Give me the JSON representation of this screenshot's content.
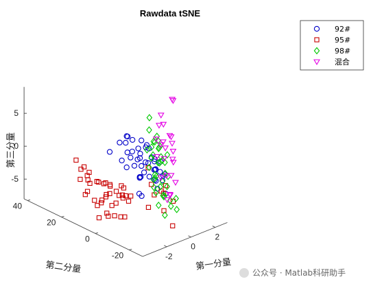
{
  "chart_data": {
    "type": "scatter",
    "projection": "3d",
    "title": "Rawdata tSNE",
    "xlabel": "第一分量",
    "ylabel": "第二分量",
    "zlabel": "第三分量",
    "xlim": [
      -4,
      3
    ],
    "ylim": [
      -28,
      42
    ],
    "zlim": [
      -8,
      9
    ],
    "x_ticks": [
      "-2",
      "0",
      "2"
    ],
    "x_tick_values": [
      -2,
      0,
      2
    ],
    "y_ticks": [
      "-20",
      "0",
      "20",
      "40"
    ],
    "y_tick_values": [
      -20,
      0,
      20,
      40
    ],
    "z_ticks": [
      "-5",
      "0",
      "5"
    ],
    "z_tick_values": [
      -5,
      0,
      5
    ],
    "grid": false,
    "legend_position": "top-right",
    "series": [
      {
        "name": "92#",
        "marker": "circle",
        "color": "#0000c8",
        "points": [
          [
            -2.4,
            -3,
            5.0
          ],
          [
            -2.1,
            -5,
            6.0
          ],
          [
            -1.9,
            -3,
            4.6
          ],
          [
            -1.6,
            -2,
            5.2
          ],
          [
            -2.8,
            0,
            3.5
          ],
          [
            -2.2,
            -8,
            3.2
          ],
          [
            -1.5,
            -4,
            3.1
          ],
          [
            -1.2,
            -2,
            4.4
          ],
          [
            -2.6,
            -9,
            4.4
          ],
          [
            -1.7,
            -10,
            3.0
          ],
          [
            -1.0,
            -4,
            3.2
          ],
          [
            -2.3,
            -11,
            2.4
          ],
          [
            -1.4,
            -8,
            3.2
          ],
          [
            -0.6,
            -3,
            4.0
          ],
          [
            -0.8,
            -7,
            3.6
          ],
          [
            -2.0,
            -13,
            2.4
          ],
          [
            -1.3,
            -12,
            2.2
          ],
          [
            -0.4,
            -6,
            3.0
          ],
          [
            -2.7,
            -17,
            1.6
          ],
          [
            -0.6,
            -9,
            2.2
          ],
          [
            -1.9,
            -17,
            1.2
          ],
          [
            -1.0,
            -14,
            1.2
          ],
          [
            -0.2,
            -8,
            1.5
          ],
          [
            -1.5,
            -18,
            0.4
          ],
          [
            -2.6,
            -16,
            -1.0
          ],
          [
            -2.4,
            -16,
            -1.5
          ],
          [
            -0.6,
            -14,
            0.6
          ],
          [
            -1.1,
            -15,
            1.5
          ],
          [
            0.0,
            -10,
            1.2
          ],
          [
            -1.8,
            -21,
            -0.2
          ],
          [
            -1.1,
            -19,
            0.3
          ],
          [
            -0.5,
            -16,
            0.4
          ],
          [
            -1.4,
            -23,
            -1.0
          ],
          [
            -2.8,
            -10,
            2.4
          ],
          [
            -1.2,
            -5,
            1.8
          ],
          [
            -1.6,
            -18,
            0.6
          ],
          [
            -0.8,
            -12,
            0.8
          ],
          [
            -2.2,
            -14,
            1.0
          ],
          [
            -0.3,
            -4,
            3.2
          ],
          [
            -1.1,
            -9,
            1.8
          ],
          [
            -0.5,
            -10,
            1.6
          ],
          [
            -2.0,
            -12,
            0.6
          ],
          [
            -1.5,
            -11,
            0.8
          ],
          [
            -2.5,
            -5,
            2.6
          ],
          [
            -0.2,
            -13,
            -0.4
          ]
        ]
      },
      {
        "name": "95#",
        "marker": "square",
        "color": "#c80000",
        "points": [
          [
            -0.8,
            -12,
            -3.0
          ],
          [
            -0.5,
            -14,
            -2.4
          ],
          [
            0.2,
            -16,
            -4.2
          ],
          [
            -0.2,
            -6,
            -2.6
          ],
          [
            0.1,
            -2,
            -0.8
          ],
          [
            0.7,
            -8,
            -3.2
          ],
          [
            0.0,
            -12,
            -6.0
          ],
          [
            0.4,
            -9,
            -4.0
          ],
          [
            -1.0,
            -10,
            -5.0
          ],
          [
            -0.4,
            -20,
            -7.0
          ],
          [
            -2.4,
            0,
            -6.5
          ],
          [
            -2.1,
            10,
            -6.0
          ],
          [
            -1.8,
            8,
            -8.0
          ],
          [
            -1.2,
            16,
            -7.0
          ],
          [
            -0.6,
            18,
            -7.2
          ],
          [
            -0.2,
            22,
            -6.0
          ],
          [
            -0.4,
            6,
            -6.5
          ],
          [
            0.2,
            14,
            -7.0
          ],
          [
            0.6,
            24,
            -7.2
          ],
          [
            -1.6,
            2,
            -7.5
          ],
          [
            -1.0,
            4,
            -8.2
          ],
          [
            -2.4,
            16,
            -4.8
          ],
          [
            -1.8,
            20,
            -4.0
          ],
          [
            -1.3,
            24,
            -4.2
          ],
          [
            -0.8,
            26,
            -6.0
          ],
          [
            -0.3,
            30,
            -5.2
          ],
          [
            0.3,
            22,
            -6.5
          ],
          [
            -1.4,
            12,
            -5.5
          ],
          [
            -0.9,
            16,
            -4.6
          ],
          [
            -2.2,
            6,
            -7.0
          ],
          [
            -1.5,
            8,
            -6.6
          ],
          [
            -0.6,
            12,
            -7.4
          ],
          [
            0.0,
            20,
            -7.4
          ],
          [
            -1.9,
            14,
            -3.4
          ],
          [
            -1.0,
            28,
            -3.6
          ],
          [
            -2.1,
            22,
            -2.4
          ],
          [
            -0.3,
            10,
            -6.6
          ],
          [
            -1.3,
            18,
            -8.0
          ],
          [
            -0.7,
            24,
            -8.4
          ],
          [
            -0.5,
            4,
            -5.4
          ],
          [
            -1.7,
            4,
            -3.8
          ],
          [
            0.4,
            16,
            -6.0
          ],
          [
            -2.0,
            12,
            -8.6
          ],
          [
            -1.1,
            32,
            -3.0
          ],
          [
            -0.8,
            6,
            -4.2
          ],
          [
            0.2,
            28,
            -6.8
          ],
          [
            -1.6,
            26,
            -4.8
          ],
          [
            -1.2,
            2,
            -4.6
          ],
          [
            0.5,
            18,
            -7.8
          ],
          [
            -2.3,
            18,
            -5.6
          ]
        ]
      },
      {
        "name": "98#",
        "marker": "diamond",
        "color": "#00c800",
        "points": [
          [
            0.6,
            1,
            4.2
          ],
          [
            0.9,
            3,
            5.6
          ],
          [
            0.4,
            -3,
            3.1
          ],
          [
            0.5,
            -5,
            3.4
          ],
          [
            -0.2,
            -7,
            2.0
          ],
          [
            0.1,
            -4,
            2.6
          ],
          [
            -0.2,
            -10,
            1.2
          ],
          [
            0.3,
            -9,
            1.1
          ],
          [
            -1.0,
            -13,
            -0.4
          ],
          [
            -1.3,
            -16,
            0.4
          ],
          [
            -1.5,
            -18,
            -1.4
          ],
          [
            -0.8,
            -18,
            -2.4
          ],
          [
            -1.1,
            -24,
            -3.0
          ],
          [
            -0.9,
            -26,
            -3.4
          ],
          [
            -1.7,
            -21,
            -2.8
          ],
          [
            -1.2,
            -20,
            -1.8
          ],
          [
            -0.4,
            -14,
            -1.0
          ],
          [
            0.1,
            -12,
            -0.4
          ],
          [
            0.6,
            -6,
            1.0
          ],
          [
            0.2,
            -8,
            0.6
          ],
          [
            -0.6,
            -11,
            -0.2
          ],
          [
            1.0,
            -2,
            1.6
          ],
          [
            0.8,
            -4,
            2.2
          ],
          [
            -0.2,
            -6,
            1.4
          ],
          [
            0.5,
            -9,
            0.6
          ],
          [
            -1.1,
            -14,
            -1.4
          ],
          [
            -0.6,
            -20,
            -3.0
          ],
          [
            -1.4,
            -22,
            -1.6
          ],
          [
            -0.3,
            -16,
            -1.6
          ],
          [
            0.4,
            -6,
            2.4
          ],
          [
            1.1,
            0,
            3.0
          ],
          [
            -0.8,
            -9,
            0.8
          ],
          [
            0.2,
            -13,
            -0.8
          ],
          [
            -1.6,
            -24,
            -4.0
          ],
          [
            -1.0,
            -17,
            -1.0
          ],
          [
            0.7,
            -9,
            1.6
          ],
          [
            -0.4,
            -22,
            -2.6
          ],
          [
            0.0,
            -2,
            2.0
          ],
          [
            1.2,
            2,
            1.8
          ],
          [
            -0.9,
            -14,
            0.2
          ]
        ]
      },
      {
        "name": "混合",
        "marker": "triangle-down",
        "color": "#e400e4",
        "points": [
          [
            1.6,
            -6,
            8.8
          ],
          [
            1.8,
            -4,
            8.6
          ],
          [
            1.3,
            -1,
            6.2
          ],
          [
            0.8,
            -6,
            5.8
          ],
          [
            0.6,
            -12,
            4.8
          ],
          [
            0.4,
            -14,
            4.2
          ],
          [
            0.2,
            -16,
            3.4
          ],
          [
            0.0,
            -10,
            3.8
          ],
          [
            -0.4,
            -15,
            2.6
          ],
          [
            -0.2,
            -19,
            2.4
          ],
          [
            -0.8,
            -22,
            1.2
          ],
          [
            -1.0,
            -26,
            0.8
          ],
          [
            -0.9,
            -20,
            1.0
          ],
          [
            0.5,
            -8,
            3.6
          ],
          [
            0.2,
            -6,
            4.0
          ],
          [
            -0.6,
            -20,
            -2.2
          ],
          [
            -0.9,
            -22,
            -1.6
          ],
          [
            -1.4,
            -24,
            -1.8
          ],
          [
            0.4,
            -10,
            3.0
          ],
          [
            1.0,
            -2,
            5.0
          ],
          [
            0.3,
            -15,
            2.0
          ],
          [
            -0.3,
            -10,
            2.2
          ],
          [
            0.9,
            -9,
            4.4
          ],
          [
            -1.1,
            -18,
            0.6
          ]
        ]
      }
    ]
  },
  "watermark": "公众号 · Matlab科研助手"
}
